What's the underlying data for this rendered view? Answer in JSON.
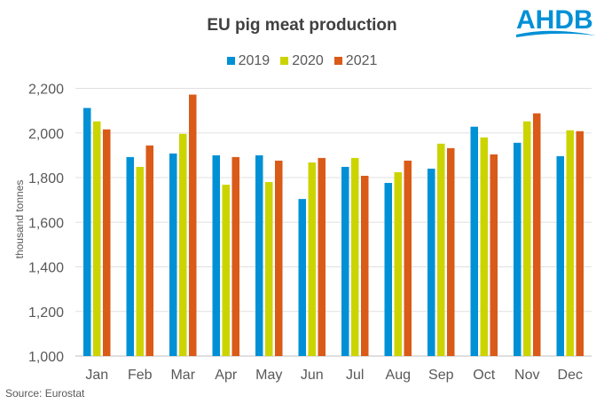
{
  "chart_data": {
    "type": "bar",
    "title": "EU pig meat production",
    "ylabel": "thousand tonnes",
    "xlabel": "",
    "ylim": [
      1000,
      2200
    ],
    "yticks": [
      "1,000",
      "1,200",
      "1,400",
      "1,600",
      "1,800",
      "2,000",
      "2,200"
    ],
    "ytick_values": [
      1000,
      1200,
      1400,
      1600,
      1800,
      2000,
      2200
    ],
    "grid": true,
    "legend_position": "top",
    "categories": [
      "Jan",
      "Feb",
      "Mar",
      "Apr",
      "May",
      "Jun",
      "Jul",
      "Aug",
      "Sep",
      "Oct",
      "Nov",
      "Dec"
    ],
    "series": [
      {
        "name": "2019",
        "color": "#0090D6",
        "values": [
          2112,
          1892,
          1908,
          1900,
          1900,
          1704,
          1848,
          1776,
          1840,
          2028,
          1956,
          1896
        ]
      },
      {
        "name": "2020",
        "color": "#CCD400",
        "values": [
          2052,
          1848,
          1996,
          1768,
          1780,
          1868,
          1888,
          1824,
          1952,
          1980,
          2052,
          2012
        ]
      },
      {
        "name": "2021",
        "color": "#DA5A18",
        "values": [
          2016,
          1944,
          2172,
          1892,
          1876,
          1888,
          1808,
          1876,
          1932,
          1904,
          2088,
          2008
        ]
      }
    ]
  },
  "source": "Source:  Eurostat",
  "logo": {
    "text": "AHDB",
    "color": "#0090D6"
  }
}
